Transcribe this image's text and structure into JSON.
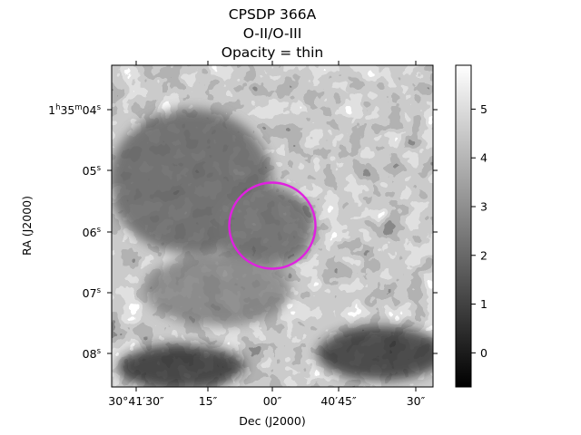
{
  "chart_data": {
    "type": "heatmap",
    "title_lines": [
      "CPSDP 366A",
      "O-II/O-III",
      "Opacity = thin"
    ],
    "xlabel": "Dec (J2000)",
    "ylabel": "RA (J2000)",
    "x_ticks": [
      {
        "label": "30°41′30″",
        "value": "30°41′30″"
      },
      {
        "label": "15″",
        "value": "30°41′15″"
      },
      {
        "label": "00″",
        "value": "30°41′00″"
      },
      {
        "label": "40′45″",
        "value": "30°40′45″"
      },
      {
        "label": "30″",
        "value": "30°40′30″"
      }
    ],
    "y_ticks": [
      {
        "prefix": "1",
        "h": "h",
        "mid": "35",
        "m": "m",
        "num": "04",
        "s": "s"
      },
      {
        "num": "05",
        "s": "s"
      },
      {
        "num": "06",
        "s": "s"
      },
      {
        "num": "07",
        "s": "s"
      },
      {
        "num": "08",
        "s": "s"
      }
    ],
    "colorbar": {
      "cmap": "gray",
      "range": [
        -0.7,
        5.9
      ],
      "ticks": [
        "0",
        "1",
        "2",
        "3",
        "4",
        "5"
      ],
      "tick_values": [
        0,
        1,
        2,
        3,
        4,
        5
      ]
    },
    "aperture": {
      "shape": "circle",
      "color": "#e020e0",
      "center_ra": "1h35m06.0s",
      "center_dec": "30°41′00″"
    },
    "grid": false
  }
}
